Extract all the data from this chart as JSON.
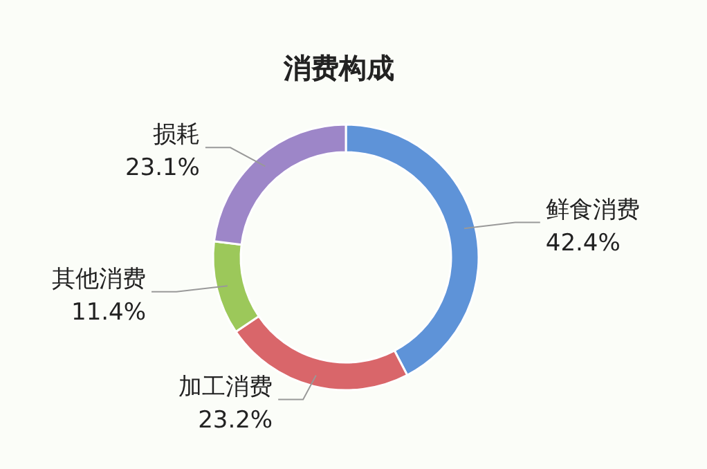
{
  "chart_data": {
    "type": "donut",
    "title": "消费构成",
    "categories": [
      "鲜食消费",
      "加工消费",
      "其他消费",
      "损耗"
    ],
    "values": [
      42.4,
      23.2,
      11.4,
      23.1
    ],
    "colors": [
      "#5e93d8",
      "#d9666a",
      "#9cc85a",
      "#9d86c8"
    ],
    "value_labels": [
      "42.4%",
      "23.2%",
      "11.4%",
      "23.1%"
    ]
  }
}
